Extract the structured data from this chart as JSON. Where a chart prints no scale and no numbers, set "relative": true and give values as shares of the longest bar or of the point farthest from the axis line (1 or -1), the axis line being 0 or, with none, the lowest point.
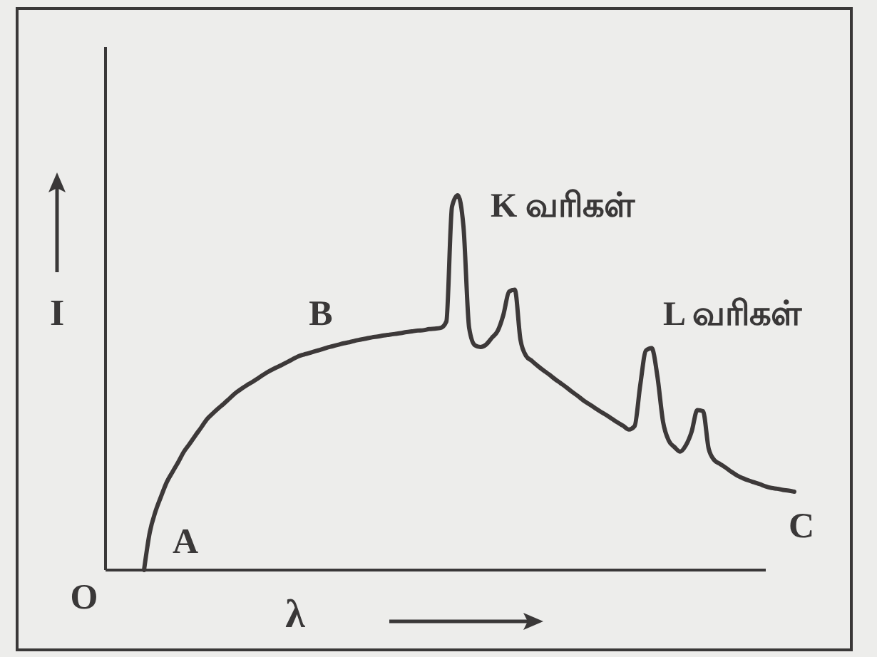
{
  "chart_data": {
    "type": "line",
    "relative": true,
    "color": "#3d3939",
    "xlabel": "λ",
    "ylabel": "I",
    "annotations": [
      "K வரிகள்",
      "L வரிகள்",
      "B",
      "C",
      "A",
      "O"
    ],
    "categories": [
      null,
      null,
      null,
      null,
      null,
      null,
      null,
      null,
      null,
      null,
      null,
      null,
      null,
      null,
      null,
      null,
      null,
      null,
      null,
      null,
      null,
      null,
      null,
      null,
      null,
      null,
      null,
      null,
      null,
      null,
      null,
      null,
      null,
      null,
      null,
      null,
      null,
      null,
      null,
      null,
      null,
      null,
      null,
      null,
      null,
      null,
      null,
      null,
      null,
      null,
      null,
      null,
      null,
      null,
      null,
      null,
      null,
      null,
      null,
      null,
      null,
      null,
      null,
      null,
      null,
      null,
      null,
      null,
      null,
      null,
      null,
      null,
      null,
      null,
      null,
      null,
      null,
      null,
      null,
      null,
      null,
      null,
      null,
      null,
      null,
      null,
      null,
      null,
      null,
      null,
      null,
      null,
      null,
      null,
      null,
      null,
      null,
      null,
      null,
      null,
      null,
      null,
      null,
      null,
      null,
      null,
      null,
      null,
      null,
      null,
      null,
      null,
      null,
      null,
      null
    ],
    "values": [
      0,
      0.1,
      0.156,
      0.197,
      0.235,
      0.262,
      0.288,
      0.316,
      0.337,
      0.359,
      0.38,
      0.402,
      0.417,
      0.431,
      0.444,
      0.458,
      0.472,
      0.483,
      0.493,
      0.502,
      0.512,
      0.522,
      0.531,
      0.539,
      0.546,
      0.554,
      0.562,
      0.57,
      0.575,
      0.579,
      0.584,
      0.588,
      0.593,
      0.597,
      0.601,
      0.605,
      0.608,
      0.612,
      0.615,
      0.618,
      0.621,
      0.623,
      0.626,
      0.628,
      0.63,
      0.632,
      0.635,
      0.637,
      0.639,
      0.64,
      0.643,
      0.644,
      0.646,
      0.663,
      0.97,
      1,
      0.917,
      0.646,
      0.6,
      0.595,
      0.602,
      0.62,
      0.638,
      0.681,
      0.743,
      0.748,
      0.614,
      0.571,
      0.558,
      0.545,
      0.533,
      0.522,
      0.51,
      0.499,
      0.488,
      0.476,
      0.465,
      0.453,
      0.443,
      0.433,
      0.423,
      0.414,
      0.404,
      0.394,
      0.385,
      0.375,
      0.384,
      0.494,
      0.586,
      0.592,
      0.517,
      0.395,
      0.345,
      0.328,
      0.316,
      0.333,
      0.369,
      0.427,
      0.424,
      0.323,
      0.293,
      0.283,
      0.273,
      0.262,
      0.252,
      0.245,
      0.239,
      0.234,
      0.229,
      0.223,
      0.219,
      0.217,
      0.214,
      0.212,
      0.209
    ]
  }
}
